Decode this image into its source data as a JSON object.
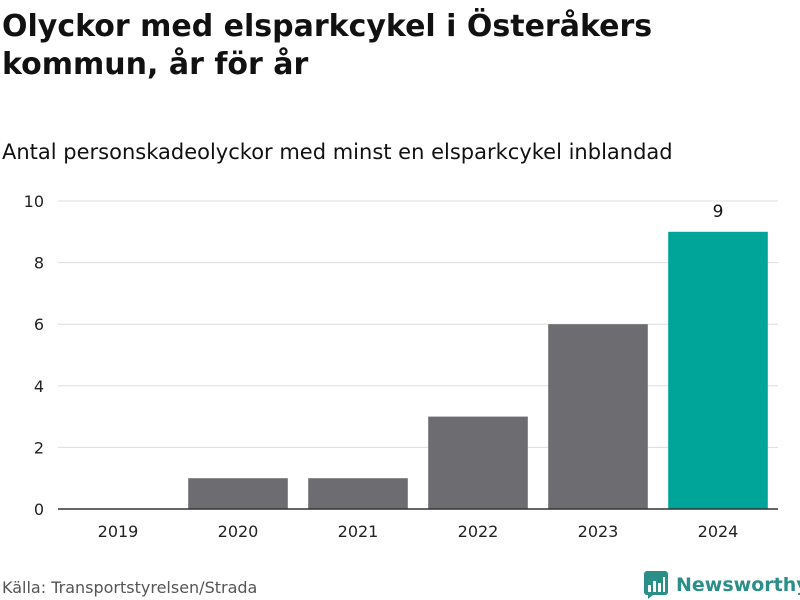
{
  "header": {
    "title": "Olyckor med elsparkcykel i Österåkers kommun, år för år",
    "subtitle": "Antal personskadeolyckor med minst en elsparkcykel inblandad"
  },
  "footer": {
    "source": "Källa: Transportstyrelsen/Strada",
    "brand": "Newsworthy"
  },
  "colors": {
    "bar": "#6d6c71",
    "highlight": "#00a59a",
    "grid": "#dddddd",
    "axis": "#333333",
    "brand": "#2a8f86"
  },
  "chart_data": {
    "type": "bar",
    "categories": [
      "2019",
      "2020",
      "2021",
      "2022",
      "2023",
      "2024"
    ],
    "values": [
      0,
      1,
      1,
      3,
      6,
      9
    ],
    "highlight_index": 5,
    "data_labels": [
      {
        "index": 5,
        "text": "9"
      }
    ],
    "title": "Olyckor med elsparkcykel i Österåkers kommun, år för år",
    "subtitle": "Antal personskadeolyckor med minst en elsparkcykel inblandad",
    "xlabel": "",
    "ylabel": "",
    "ylim": [
      0,
      10
    ],
    "yticks": [
      0,
      2,
      4,
      6,
      8,
      10
    ],
    "grid": true,
    "legend": "none"
  }
}
